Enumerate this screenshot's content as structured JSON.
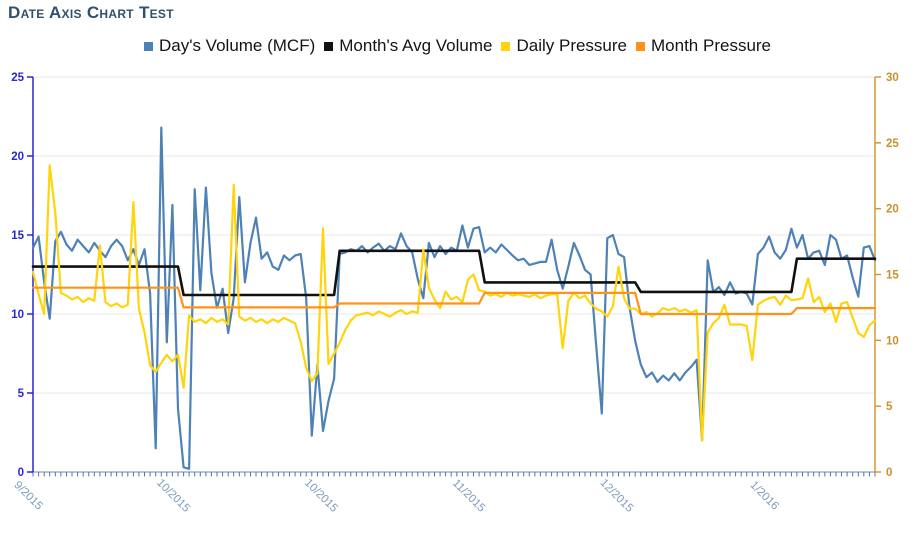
{
  "chart_data": {
    "type": "line",
    "title": "Date Axis Chart Test",
    "title_color": "#31506e",
    "background": "#ffffff",
    "grid": {
      "show": true,
      "color": "#e8e8e8",
      "left_values": [
        5,
        10,
        15,
        20,
        25
      ]
    },
    "x_axis": {
      "total_days": 152,
      "minor_tick_every_day": true,
      "tick_days": [
        0,
        26,
        52.5,
        79,
        105.5,
        132
      ],
      "tick_labels": [
        "9/2015",
        "10/2015",
        "10/2015",
        "11/2015",
        "12/2015",
        "1/2016"
      ],
      "label_color": "#7e9cbd",
      "line_color": "#8aa0b8",
      "tick_color": "#4a78b0",
      "label_rotation_deg": 45
    },
    "y_left": {
      "min": 0,
      "max": 25,
      "ticks": [
        0,
        5,
        10,
        15,
        20,
        25
      ],
      "label_color": "#2828cf",
      "line_color": "#2828cf"
    },
    "y_right": {
      "min": 0,
      "max": 30,
      "ticks": [
        0,
        5,
        10,
        15,
        20,
        25,
        30
      ],
      "label_color": "#c8922a",
      "line_color": "#d29a2e"
    },
    "series": [
      {
        "name": "Day's Volume (MCF)",
        "axis": "left",
        "color": "#4e82b6",
        "width": 2.2,
        "values": [
          14.2,
          14.9,
          12.0,
          9.7,
          14.6,
          15.2,
          14.4,
          14.0,
          14.7,
          14.3,
          13.9,
          14.5,
          14.0,
          13.6,
          14.3,
          14.7,
          14.3,
          13.4,
          14.1,
          13.1,
          14.1,
          11.3,
          1.5,
          21.8,
          8.2,
          16.9,
          4.0,
          0.3,
          0.2,
          17.9,
          11.5,
          18.0,
          12.6,
          10.4,
          11.6,
          8.8,
          11.0,
          17.4,
          12.0,
          14.5,
          16.1,
          13.5,
          13.9,
          13.0,
          12.8,
          13.7,
          13.4,
          13.7,
          13.8,
          11.0,
          2.3,
          6.8,
          2.6,
          4.5,
          5.9,
          13.8,
          13.9,
          14.1,
          14.0,
          14.3,
          13.9,
          14.2,
          14.45,
          14.0,
          14.3,
          14.1,
          15.1,
          14.3,
          13.9,
          12.2,
          11.0,
          14.5,
          13.6,
          14.3,
          13.8,
          14.2,
          14.0,
          15.6,
          14.2,
          15.4,
          15.5,
          13.9,
          14.2,
          13.9,
          14.4,
          14.05,
          13.7,
          13.4,
          13.5,
          13.1,
          13.2,
          13.3,
          13.3,
          14.7,
          12.8,
          11.6,
          13.0,
          14.5,
          13.7,
          12.8,
          12.5,
          8.0,
          3.7,
          14.8,
          15.0,
          13.8,
          13.6,
          10.4,
          8.3,
          6.8,
          6.0,
          6.3,
          5.7,
          6.1,
          5.8,
          6.25,
          5.8,
          6.3,
          6.65,
          7.1,
          2.0,
          13.4,
          11.4,
          11.7,
          11.2,
          12.0,
          11.3,
          11.4,
          11.3,
          10.6,
          13.8,
          14.2,
          14.9,
          13.9,
          13.5,
          14.05,
          15.4,
          14.2,
          15.0,
          13.5,
          13.9,
          14.0,
          13.1,
          15.0,
          14.7,
          13.5,
          13.7,
          12.3,
          11.1,
          14.2,
          14.3,
          13.4
        ]
      },
      {
        "name": "Month's Avg Volume",
        "axis": "left",
        "color": "#111111",
        "width": 2.6,
        "segments": [
          {
            "from": 0,
            "to": 26,
            "value": 13.0
          },
          {
            "from": 27,
            "to": 54,
            "value": 11.2
          },
          {
            "from": 55,
            "to": 80,
            "value": 14.0
          },
          {
            "from": 81,
            "to": 108,
            "value": 12.0
          },
          {
            "from": 109,
            "to": 136,
            "value": 11.4
          },
          {
            "from": 137,
            "to": 151,
            "value": 13.5
          }
        ]
      },
      {
        "name": "Daily Pressure",
        "axis": "right",
        "color": "#ffd40c",
        "width": 2.2,
        "values": [
          15.2,
          13.5,
          12.0,
          23.3,
          19.7,
          13.6,
          13.4,
          13.1,
          13.3,
          12.9,
          13.2,
          13.0,
          17.2,
          12.9,
          12.6,
          12.8,
          12.5,
          12.7,
          20.5,
          12.4,
          10.6,
          8.1,
          7.6,
          8.3,
          8.9,
          8.4,
          8.9,
          6.4,
          11.9,
          11.4,
          11.6,
          11.3,
          11.7,
          11.4,
          11.6,
          11.2,
          21.8,
          11.8,
          11.5,
          11.7,
          11.4,
          11.6,
          11.3,
          11.6,
          11.4,
          11.7,
          11.5,
          11.3,
          9.9,
          7.9,
          6.9,
          7.5,
          18.5,
          8.2,
          9.0,
          9.8,
          10.8,
          11.5,
          11.9,
          12.0,
          12.1,
          11.9,
          12.2,
          12.0,
          11.8,
          12.1,
          12.3,
          12.0,
          12.2,
          12.1,
          16.9,
          14.0,
          13.1,
          12.45,
          13.7,
          13.1,
          13.3,
          12.9,
          14.6,
          15.0,
          13.8,
          13.7,
          13.4,
          13.5,
          13.3,
          13.6,
          13.4,
          13.5,
          13.4,
          13.3,
          13.5,
          13.2,
          13.4,
          13.5,
          13.5,
          9.4,
          13.0,
          13.6,
          13.2,
          13.4,
          12.8,
          12.4,
          12.2,
          11.8,
          12.6,
          15.6,
          13.2,
          12.4,
          12.4,
          12.0,
          12.15,
          11.8,
          12.05,
          12.45,
          12.3,
          12.45,
          12.2,
          12.35,
          12.1,
          12.3,
          2.4,
          10.6,
          11.3,
          11.7,
          12.7,
          11.2,
          11.2,
          11.2,
          11.1,
          8.5,
          12.7,
          13.0,
          13.2,
          13.3,
          12.7,
          13.4,
          13.05,
          13.1,
          13.2,
          14.7,
          12.9,
          13.3,
          12.15,
          12.8,
          11.4,
          12.8,
          12.9,
          11.7,
          10.55,
          10.25,
          11.15,
          11.5
        ]
      },
      {
        "name": "Month Pressure",
        "axis": "right",
        "color": "#ff9218",
        "width": 2.2,
        "segments": [
          {
            "from": 0,
            "to": 26,
            "value": 14.0
          },
          {
            "from": 27,
            "to": 54,
            "value": 12.5
          },
          {
            "from": 55,
            "to": 80,
            "value": 12.8
          },
          {
            "from": 81,
            "to": 108,
            "value": 13.6
          },
          {
            "from": 109,
            "to": 136,
            "value": 12.0
          },
          {
            "from": 137,
            "to": 151,
            "value": 12.45
          }
        ]
      }
    ],
    "legend_position": "top-center"
  }
}
